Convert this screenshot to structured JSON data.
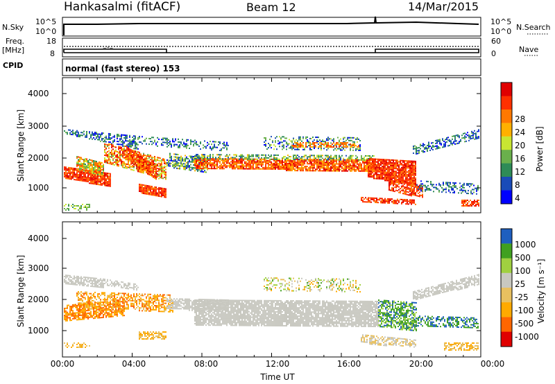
{
  "header": {
    "station": "Hankasalmi (fitACF)",
    "beam": "Beam 12",
    "date": "14/Mar/2015"
  },
  "strip": {
    "nsky_label": "N.Sky",
    "nsky_ticks": [
      "10^5",
      "10^0"
    ],
    "nsearch_label": "N.Search",
    "nsearch_ticks": [
      "10^5",
      "10^0"
    ],
    "freq_label": "Freq.",
    "freq_unit": "[MHz]",
    "freq_ticks": [
      "18",
      "8"
    ],
    "nave_label": "Nave",
    "nave_ticks": [
      "60",
      "0"
    ],
    "cpid_label": "CPID",
    "cpid_text": "normal (fast stereo) 153"
  },
  "colors": {
    "power": [
      "#0000ff",
      "#1a4bb8",
      "#2e8b57",
      "#6ab04c",
      "#c8e632",
      "#ffb000",
      "#ff7800",
      "#ff3000",
      "#e00000"
    ],
    "velocity": [
      "#e00000",
      "#ff6600",
      "#ffaa00",
      "#e8c060",
      "#c8c8c0",
      "#a0d040",
      "#40a020",
      "#1e5fbf"
    ]
  },
  "chart_data": [
    {
      "type": "heatmap",
      "name": "power",
      "ylabel": "Slant Range [km]",
      "ylim": [
        200,
        4600
      ],
      "yticks": [
        "4000",
        "3000",
        "2000",
        "1000"
      ],
      "colorbar_label": "Power [dB]",
      "colorbar_ticks": [
        "28",
        "24",
        "20",
        "16",
        "12",
        "8",
        "4"
      ],
      "colorbar_range": [
        0,
        32
      ]
    },
    {
      "type": "heatmap",
      "name": "velocity",
      "ylabel": "Slant Range [km]",
      "ylim": [
        200,
        4600
      ],
      "yticks": [
        "4000",
        "3000",
        "2000",
        "1000"
      ],
      "colorbar_label": "Velocity [m s⁻¹]",
      "colorbar_ticks": [
        "1000",
        "500",
        "100",
        "25",
        "-25",
        "-100",
        "-500",
        "-1000"
      ]
    }
  ],
  "xaxis": {
    "label": "Time UT",
    "ticks": [
      "00:00",
      "04:00",
      "08:00",
      "12:00",
      "16:00",
      "20:00",
      "00:00"
    ]
  }
}
